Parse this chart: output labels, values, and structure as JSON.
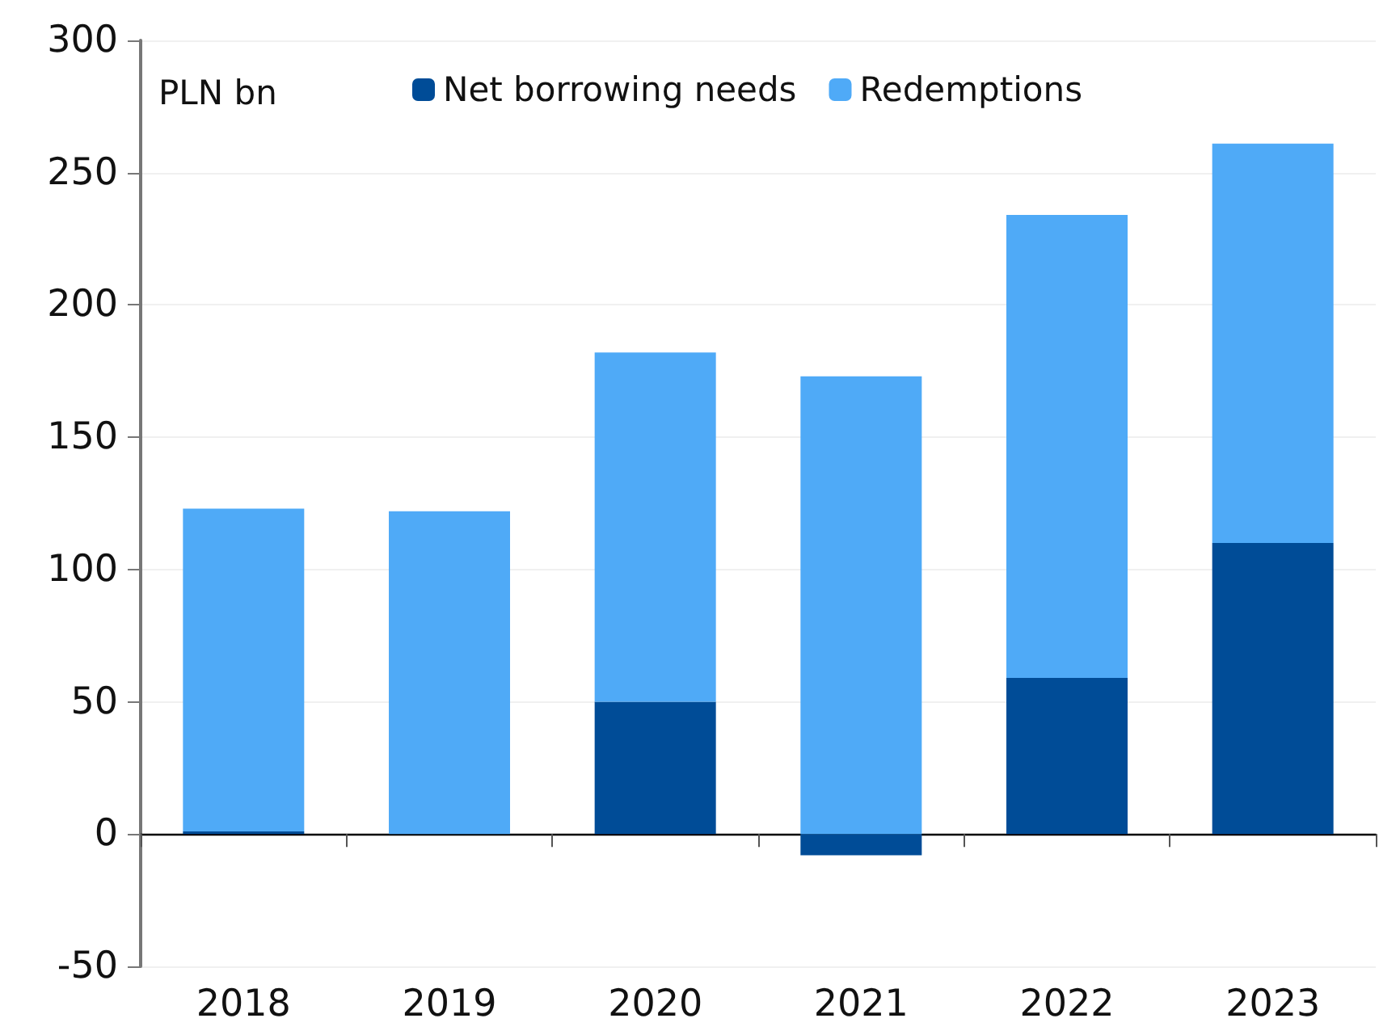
{
  "chart_data": {
    "type": "bar",
    "ylabel": "PLN bn",
    "categories": [
      "2018",
      "2019",
      "2020",
      "2021",
      "2022",
      "2023"
    ],
    "stacked": true,
    "series": [
      {
        "name": "Net borrowing needs",
        "color": "#004c97",
        "values": [
          1,
          0,
          50,
          -8,
          59,
          110
        ]
      },
      {
        "name": "Redemptions",
        "color": "#4faaf7",
        "values": [
          122,
          122,
          132,
          173,
          175,
          151
        ]
      }
    ],
    "ylim": [
      -50,
      300
    ],
    "yticks": [
      -50,
      0,
      50,
      100,
      150,
      200,
      250,
      300
    ],
    "grid": "y",
    "legend": "top"
  }
}
